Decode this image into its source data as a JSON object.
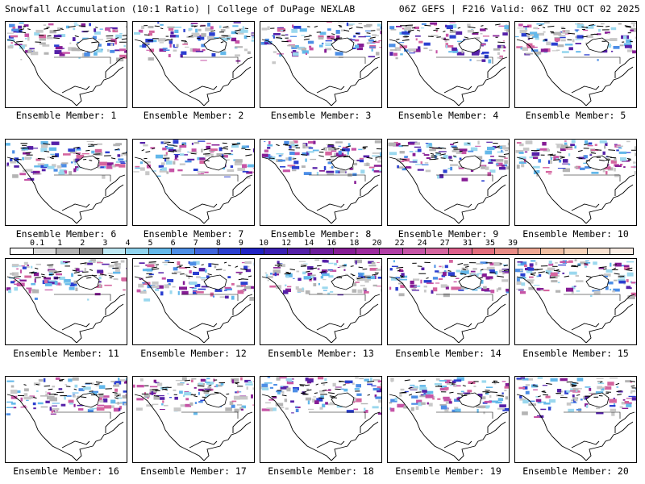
{
  "header": {
    "left": "Snowfall Accumulation (10:1 Ratio) | College of DuPage NEXLAB",
    "right": "06Z GEFS | F216 Valid: 06Z THU OCT 02 2025"
  },
  "members": [
    "Ensemble Member: 1",
    "Ensemble Member: 2",
    "Ensemble Member: 3",
    "Ensemble Member: 4",
    "Ensemble Member: 5",
    "Ensemble Member: 6",
    "Ensemble Member: 7",
    "Ensemble Member: 8",
    "Ensemble Member: 9",
    "Ensemble Member: 10",
    "Ensemble Member: 11",
    "Ensemble Member: 12",
    "Ensemble Member: 13",
    "Ensemble Member: 14",
    "Ensemble Member: 15",
    "Ensemble Member: 16",
    "Ensemble Member: 17",
    "Ensemble Member: 18",
    "Ensemble Member: 19",
    "Ensemble Member: 20"
  ],
  "colorbar": {
    "labels": [
      "0.1",
      "1",
      "2",
      "3",
      "4",
      "5",
      "6",
      "7",
      "8",
      "9",
      "10",
      "12",
      "14",
      "16",
      "18",
      "20",
      "22",
      "24",
      "27",
      "31",
      "35",
      "39"
    ],
    "colors": [
      "#ffffff",
      "#dcdcdc",
      "#b4b4b4",
      "#8c8c8c",
      "#bfe9f5",
      "#8fd3ee",
      "#63b8ea",
      "#4c8ee6",
      "#3f64dd",
      "#2b3fd0",
      "#1f22c4",
      "#3a1fb3",
      "#5520a8",
      "#6e1d9d",
      "#861c95",
      "#9d2a9e",
      "#b23ea6",
      "#c654a6",
      "#d5659f",
      "#de5f8b",
      "#e36d7c",
      "#e98c86",
      "#efa793",
      "#f3c0a3",
      "#f7d4ba",
      "#fae3d2",
      "#fcefe6"
    ]
  }
}
